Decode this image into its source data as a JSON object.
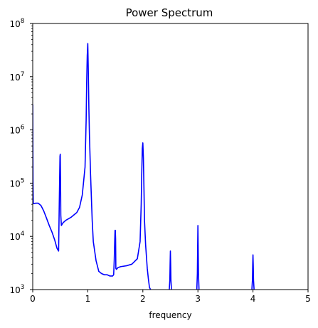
{
  "chart_data": {
    "type": "line",
    "title": "Power Spectrum",
    "xlabel": "frequency",
    "ylabel": "",
    "xlim": [
      0,
      5
    ],
    "ylim": [
      1000,
      100000000
    ],
    "yscale": "log",
    "grid": false,
    "line_color": "#0000ff",
    "x_ticks": [
      {
        "value": 0,
        "label": "0"
      },
      {
        "value": 1,
        "label": "1"
      },
      {
        "value": 2,
        "label": "2"
      },
      {
        "value": 3,
        "label": "3"
      },
      {
        "value": 4,
        "label": "4"
      },
      {
        "value": 5,
        "label": "5"
      }
    ],
    "y_ticks": [
      {
        "value": 1000,
        "base": "10",
        "exp": "3"
      },
      {
        "value": 10000,
        "base": "10",
        "exp": "4"
      },
      {
        "value": 100000,
        "base": "10",
        "exp": "5"
      },
      {
        "value": 1000000,
        "base": "10",
        "exp": "6"
      },
      {
        "value": 10000000,
        "base": "10",
        "exp": "7"
      },
      {
        "value": 100000000,
        "base": "10",
        "exp": "8"
      }
    ],
    "series": [
      {
        "x": [
          0.0,
          0.005,
          0.01,
          0.02,
          0.05,
          0.1,
          0.15,
          0.2,
          0.25,
          0.3,
          0.35,
          0.4,
          0.44,
          0.47,
          0.48,
          0.49,
          0.495,
          0.5,
          0.505,
          0.51,
          0.52,
          0.55,
          0.6,
          0.7,
          0.8,
          0.85,
          0.9,
          0.95,
          0.97,
          0.98,
          0.99,
          1.0,
          1.01,
          1.02,
          1.03,
          1.05,
          1.08,
          1.1,
          1.15,
          1.2,
          1.25,
          1.3,
          1.35,
          1.4,
          1.45,
          1.47,
          1.48,
          1.49,
          1.495,
          1.5,
          1.505,
          1.51,
          1.52,
          1.55,
          1.6,
          1.7,
          1.8,
          1.9,
          1.95,
          1.97,
          1.98,
          1.99,
          2.0,
          2.01,
          2.02,
          2.03,
          2.05,
          2.08,
          2.1,
          2.12,
          2.14
        ],
        "y": [
          3000000,
          100000,
          42000,
          41000,
          42000,
          42000,
          38000,
          30000,
          22000,
          16000,
          12000,
          8500,
          6000,
          5300,
          30000,
          150000,
          320000,
          350000,
          120000,
          25000,
          16000,
          18000,
          20000,
          23000,
          28000,
          35000,
          60000,
          200000,
          1500000,
          8000000,
          25000000,
          42000000,
          12000000,
          2500000,
          800000,
          150000,
          20000,
          8000,
          3500,
          2200,
          2000,
          1900,
          1900,
          1800,
          1800,
          1900,
          3500,
          9000,
          13000,
          13000,
          9000,
          2500,
          2400,
          2600,
          2700,
          2800,
          3000,
          3800,
          8000,
          40000,
          150000,
          450000,
          570000,
          300000,
          80000,
          20000,
          7000,
          2500,
          1600,
          1100,
          1000
        ]
      },
      {
        "x": [
          2.48,
          2.49,
          2.495,
          2.5,
          2.505,
          2.51,
          2.52
        ],
        "y": [
          1000,
          1500,
          3000,
          5300,
          3000,
          1500,
          1000
        ]
      },
      {
        "x": [
          2.98,
          2.99,
          2.995,
          3.0,
          3.005,
          3.01,
          3.02
        ],
        "y": [
          1000,
          2000,
          6000,
          16000,
          6000,
          2000,
          1000
        ]
      },
      {
        "x": [
          3.98,
          3.99,
          3.995,
          4.0,
          4.005,
          4.01,
          4.02
        ],
        "y": [
          1000,
          1500,
          2800,
          4500,
          2800,
          1500,
          1000
        ]
      }
    ]
  }
}
